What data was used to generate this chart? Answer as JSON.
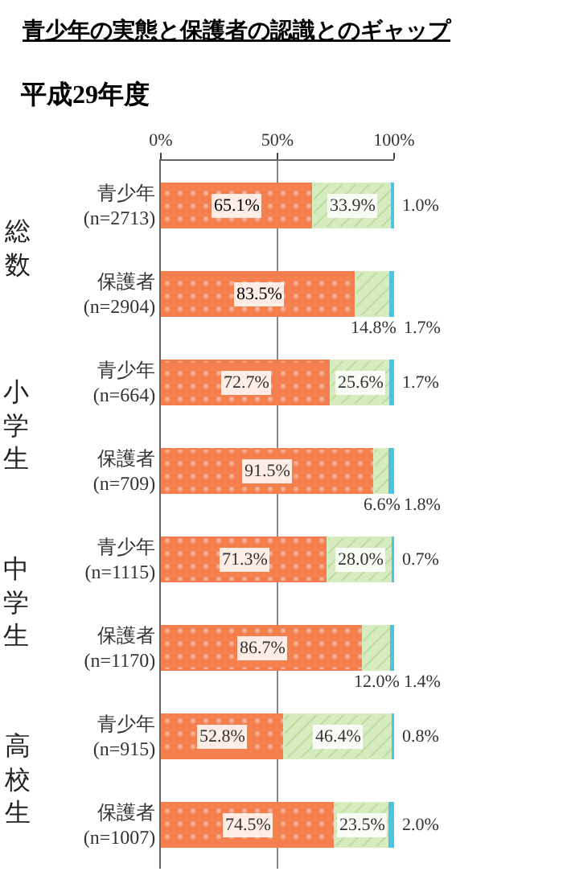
{
  "chart_data": {
    "type": "bar",
    "orientation": "horizontal",
    "stacked": true,
    "title": "青少年の実態と保護者の認識とのギャップ",
    "subtitle": "平成29年度",
    "categories": [
      "青少年\n(n=2713)",
      "保護者\n(n=2904)",
      "青少年\n(n=664)",
      "保護者\n(n=709)",
      "青少年\n(n=1115)",
      "保護者\n(n=1170)",
      "青少年\n(n=915)",
      "保護者\n(n=1007)"
    ],
    "series": [
      {
        "color": "#f4804f",
        "values": [
          65.1,
          83.5,
          72.7,
          91.5,
          71.3,
          86.7,
          52.8,
          74.5
        ],
        "value_labels": [
          "65.1%",
          "83.5%",
          "72.7%",
          "91.5%",
          "71.3%",
          "86.7%",
          "52.8%",
          "74.5%"
        ]
      },
      {
        "color": "#d6ecc0",
        "values": [
          33.9,
          14.8,
          25.6,
          6.6,
          28.0,
          12.0,
          46.4,
          23.5
        ],
        "value_labels": [
          "33.9%",
          "14.8%",
          "25.6%",
          "6.6%",
          "28.0%",
          "12.0%",
          "46.4%",
          "23.5%"
        ]
      },
      {
        "color": "#4cc3e0",
        "values": [
          1.0,
          1.7,
          1.7,
          1.8,
          0.7,
          1.4,
          0.8,
          2.0
        ],
        "value_labels": [
          "1.0%",
          "1.7%",
          "1.7%",
          "1.8%",
          "0.7%",
          "1.4%",
          "0.8%",
          "2.0%"
        ]
      }
    ],
    "annotations": [
      "総数",
      "小学生",
      "中学生",
      "高校生"
    ],
    "xlim": [
      0,
      100
    ],
    "xticks": [
      {
        "value": 0,
        "label": "0%"
      },
      {
        "value": 50,
        "label": "50%"
      },
      {
        "value": 100,
        "label": "100%"
      }
    ],
    "grid": "x"
  }
}
